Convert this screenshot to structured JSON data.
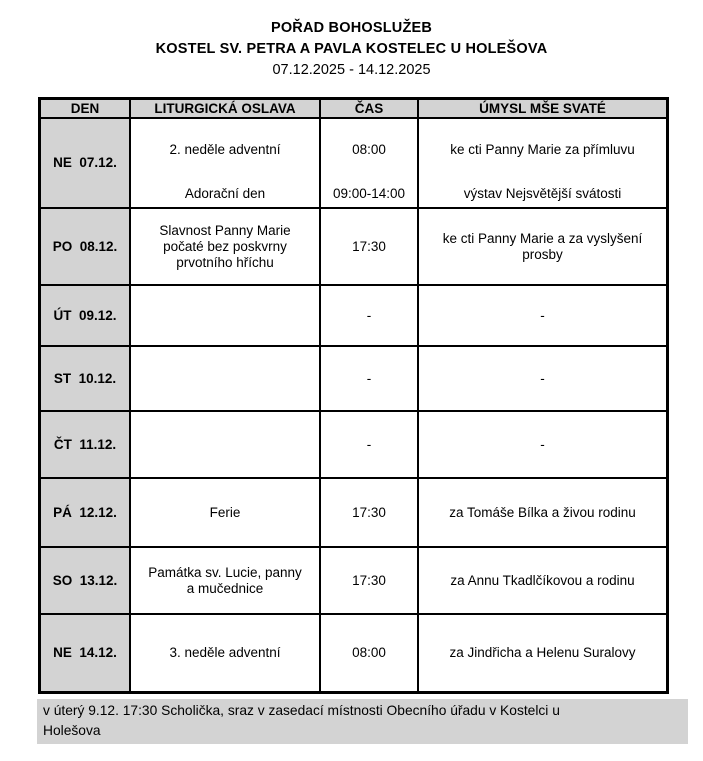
{
  "title": {
    "line1": "POŘAD BOHOSLUŽEB",
    "line2": "KOSTEL SV. PETRA A PAVLA KOSTELEC U HOLEŠOVA",
    "date_range": "07.12.2025 - 14.12.2025"
  },
  "table": {
    "headers": {
      "day": "DEN",
      "celebration": "LITURGICKÁ OSLAVA",
      "time": "ČAS",
      "intention": "ÚMYSL MŠE SVATÉ"
    },
    "rows": [
      {
        "day": "NE  07.12.",
        "celebration": "2. neděle adventní",
        "time": "08:00",
        "intention": "ke cti Panny Marie za přímluvu",
        "celebration2": "Adorační den",
        "time2": "09:00-14:00",
        "intention2": "výstav Nejsvětější svátosti"
      },
      {
        "day": "PO  08.12.",
        "celebration": "Slavnost Panny Marie\npočaté bez poskvrny\nprvotního hříchu",
        "time": "17:30",
        "intention": "ke cti Panny Marie a za vyslyšení\nprosby"
      },
      {
        "day": "ÚT  09.12.",
        "celebration": "",
        "time": "-",
        "intention": "-"
      },
      {
        "day": "ST  10.12.",
        "celebration": "",
        "time": "-",
        "intention": "-"
      },
      {
        "day": "ČT  11.12.",
        "celebration": "",
        "time": "-",
        "intention": "-"
      },
      {
        "day": "PÁ  12.12.",
        "celebration": "Ferie",
        "time": "17:30",
        "intention": "za Tomáše Bílka a živou rodinu"
      },
      {
        "day": "SO  13.12.",
        "celebration": "Památka sv. Lucie, panny\na mučednice",
        "time": "17:30",
        "intention": "za Annu Tkadlčíkovou a rodinu"
      },
      {
        "day": "NE  14.12.",
        "celebration": "3. neděle adventní",
        "time": "08:00",
        "intention": "za Jindřicha a Helenu Suralovy"
      }
    ]
  },
  "footer": {
    "note": "v úterý 9.12. 17:30 Scholička, sraz v zasedací místnosti Obecního úřadu v Kostelci u\nHolešova"
  },
  "colors": {
    "cell_gray": "#d3d3d3",
    "border": "#000000",
    "background": "#ffffff"
  }
}
